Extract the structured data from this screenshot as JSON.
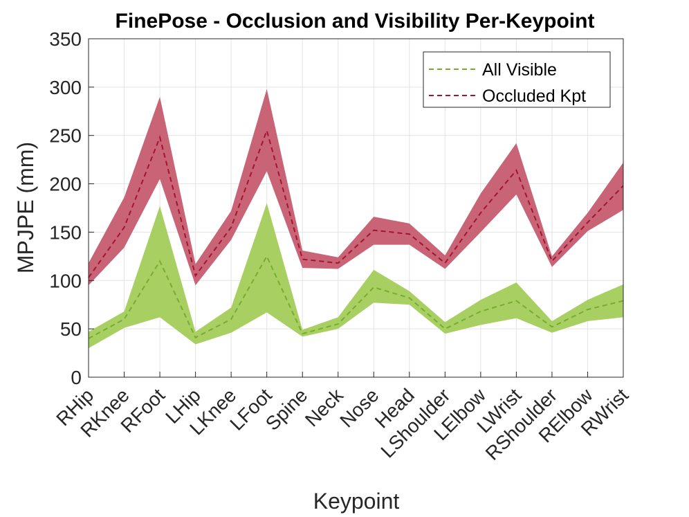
{
  "chart_data": {
    "type": "line",
    "title": "FinePose - Occlusion and Visibility Per-Keypoint",
    "xlabel": "Keypoint",
    "ylabel": "MPJPE (mm)",
    "ylim": [
      0,
      350
    ],
    "yticks": [
      0,
      50,
      100,
      150,
      200,
      250,
      300,
      350
    ],
    "grid": true,
    "legend_location": "top-right",
    "categories": [
      "RHip",
      "RKnee",
      "RFoot",
      "LHip",
      "LKnee",
      "LFoot",
      "Spine",
      "Neck",
      "Nose",
      "Head",
      "LShoulder",
      "LElbow",
      "LWrist",
      "RShoulder",
      "RElbow",
      "RWrist"
    ],
    "series": [
      {
        "name": "All Visible",
        "color": "#77AC30",
        "band_color": "#A8CF62",
        "values": [
          40,
          60,
          120,
          41,
          60,
          125,
          45,
          55,
          93,
          82,
          50,
          68,
          79,
          52,
          70,
          79
        ],
        "upper": [
          47,
          68,
          177,
          47,
          72,
          180,
          49,
          62,
          111,
          89,
          57,
          80,
          98,
          58,
          80,
          96
        ],
        "lower": [
          30,
          51,
          62,
          34,
          46,
          67,
          42,
          50,
          77,
          75,
          45,
          54,
          61,
          46,
          58,
          62
        ]
      },
      {
        "name": "Occluded Kpt",
        "color": "#A2142F",
        "band_color": "#C96477",
        "values": [
          103,
          155,
          248,
          105,
          155,
          255,
          122,
          118,
          152,
          148,
          118,
          170,
          214,
          120,
          160,
          198
        ],
        "upper": [
          118,
          186,
          290,
          117,
          172,
          298,
          131,
          124,
          166,
          159,
          126,
          190,
          242,
          125,
          170,
          222
        ],
        "lower": [
          95,
          134,
          205,
          95,
          142,
          213,
          113,
          112,
          137,
          137,
          112,
          150,
          189,
          114,
          151,
          173
        ]
      }
    ]
  }
}
